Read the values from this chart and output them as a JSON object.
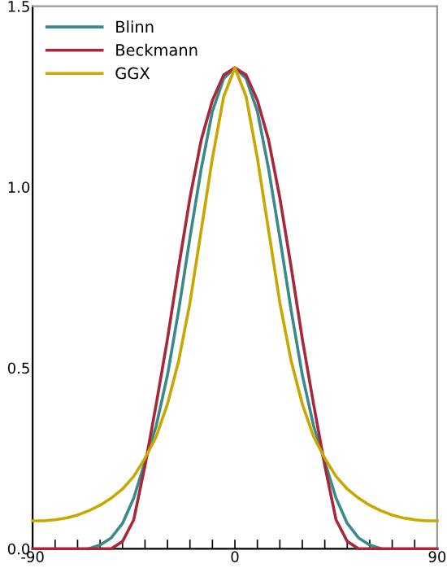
{
  "chart_data": {
    "type": "line",
    "x": [
      -90,
      -85,
      -80,
      -75,
      -70,
      -65,
      -60,
      -55,
      -50,
      -45,
      -40,
      -35,
      -30,
      -25,
      -20,
      -15,
      -10,
      -5,
      0,
      5,
      10,
      15,
      20,
      25,
      30,
      35,
      40,
      45,
      50,
      55,
      60,
      65,
      70,
      75,
      80,
      85,
      90
    ],
    "series": [
      {
        "name": "Blinn",
        "color": "#3a8a8c",
        "values": [
          null,
          null,
          null,
          null,
          null,
          0,
          0.01,
          0.03,
          0.07,
          0.14,
          0.24,
          0.34,
          0.48,
          0.66,
          0.86,
          1.05,
          1.21,
          1.3,
          1.33,
          1.3,
          1.21,
          1.05,
          0.86,
          0.66,
          0.48,
          0.34,
          0.24,
          0.14,
          0.07,
          0.03,
          0.01,
          0,
          null,
          null,
          null,
          null,
          null
        ]
      },
      {
        "name": "Beckmann",
        "color": "#a8283a",
        "values": [
          0,
          0,
          0,
          0,
          0,
          0,
          0,
          0,
          0.02,
          0.08,
          0.23,
          0.4,
          0.58,
          0.78,
          0.97,
          1.13,
          1.24,
          1.31,
          1.33,
          1.31,
          1.24,
          1.13,
          0.97,
          0.78,
          0.58,
          0.4,
          0.23,
          0.08,
          0.02,
          0,
          0,
          0,
          0,
          0,
          0,
          0,
          0
        ]
      },
      {
        "name": "GGX",
        "color": "#c8a800",
        "values": [
          0.077,
          0.077,
          0.08,
          0.085,
          0.093,
          0.105,
          0.12,
          0.14,
          0.165,
          0.2,
          0.25,
          0.31,
          0.4,
          0.52,
          0.68,
          0.88,
          1.08,
          1.25,
          1.33,
          1.25,
          1.08,
          0.88,
          0.68,
          0.52,
          0.4,
          0.31,
          0.25,
          0.2,
          0.165,
          0.14,
          0.12,
          0.105,
          0.093,
          0.085,
          0.08,
          0.077,
          0.077
        ]
      }
    ],
    "xlim": [
      -90,
      90
    ],
    "xticks": [
      -90,
      {
        "value": -80,
        "label": null
      },
      {
        "value": -70,
        "label": null
      },
      {
        "value": -60,
        "label": null
      },
      {
        "value": -50,
        "label": null
      },
      {
        "value": -40,
        "label": null
      },
      {
        "value": -30,
        "label": null
      },
      {
        "value": -20,
        "label": null
      },
      {
        "value": -10,
        "label": null
      },
      0,
      {
        "value": 10,
        "label": null
      },
      {
        "value": 20,
        "label": null
      },
      {
        "value": 30,
        "label": null
      },
      {
        "value": 40,
        "label": null
      },
      {
        "value": 50,
        "label": null
      },
      {
        "value": 60,
        "label": null
      },
      {
        "value": 70,
        "label": null
      },
      {
        "value": 80,
        "label": null
      },
      90
    ],
    "ylim": [
      0,
      1.5
    ],
    "yticks": [
      {
        "value": 0,
        "label": "0.0"
      },
      {
        "value": 0.5,
        "label": "0.5"
      },
      {
        "value": 1.0,
        "label": "1.0"
      },
      {
        "value": 1.5,
        "label": "1.5"
      }
    ],
    "grid": false,
    "legend": "top left",
    "line_style": "solid"
  }
}
